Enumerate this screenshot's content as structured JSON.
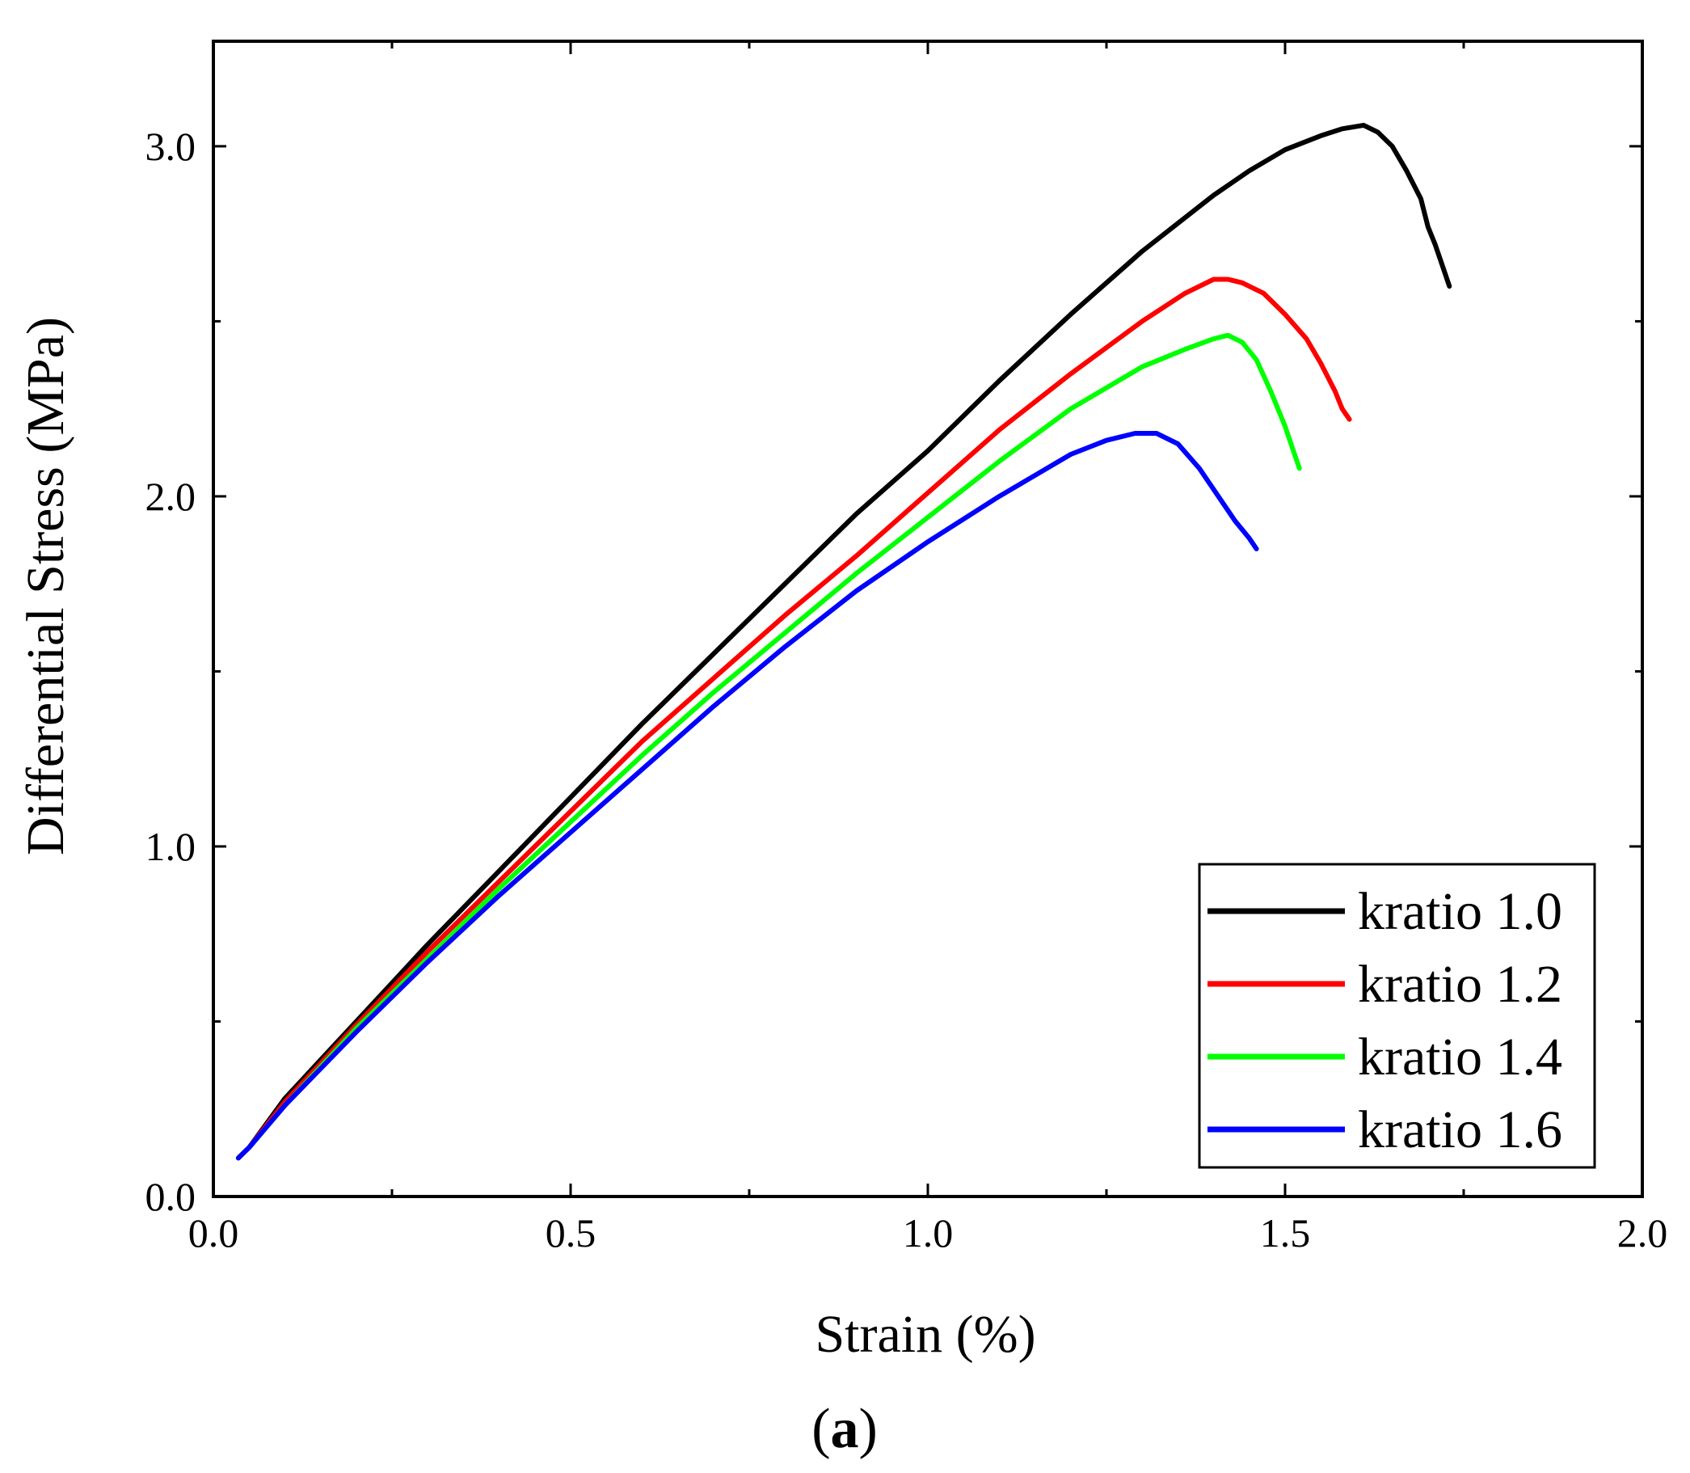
{
  "chart_data": {
    "type": "line",
    "title": "",
    "xlabel": "Strain (%)",
    "ylabel": "Differential Stress (MPa)",
    "xlim": [
      0.0,
      2.0
    ],
    "ylim": [
      0.0,
      3.3
    ],
    "xticks": [
      0.0,
      0.5,
      1.0,
      1.5,
      2.0
    ],
    "xtick_labels": [
      "0.0",
      "0.5",
      "1.0",
      "1.5",
      "2.0"
    ],
    "yticks": [
      0.0,
      1.0,
      2.0,
      3.0
    ],
    "ytick_labels": [
      "0.0",
      "1.0",
      "2.0",
      "3.0"
    ],
    "grid": false,
    "legend_position": "bottom-right",
    "series": [
      {
        "name": "kratio 1.0",
        "color": "#000000",
        "x": [
          0.035,
          0.05,
          0.1,
          0.2,
          0.3,
          0.4,
          0.5,
          0.6,
          0.7,
          0.8,
          0.9,
          1.0,
          1.1,
          1.2,
          1.3,
          1.4,
          1.45,
          1.5,
          1.55,
          1.58,
          1.61,
          1.63,
          1.65,
          1.67,
          1.69,
          1.7,
          1.71,
          1.72,
          1.73
        ],
        "y": [
          0.11,
          0.14,
          0.28,
          0.5,
          0.72,
          0.93,
          1.14,
          1.35,
          1.55,
          1.75,
          1.95,
          2.13,
          2.33,
          2.52,
          2.7,
          2.86,
          2.93,
          2.99,
          3.03,
          3.05,
          3.06,
          3.04,
          3.0,
          2.93,
          2.85,
          2.77,
          2.72,
          2.66,
          2.6
        ]
      },
      {
        "name": "kratio 1.2",
        "color": "#ff0000",
        "x": [
          0.035,
          0.05,
          0.1,
          0.2,
          0.3,
          0.4,
          0.5,
          0.6,
          0.7,
          0.8,
          0.9,
          1.0,
          1.1,
          1.2,
          1.3,
          1.36,
          1.4,
          1.42,
          1.44,
          1.47,
          1.5,
          1.53,
          1.55,
          1.57,
          1.58,
          1.59
        ],
        "y": [
          0.11,
          0.14,
          0.27,
          0.49,
          0.7,
          0.9,
          1.1,
          1.3,
          1.48,
          1.66,
          1.83,
          2.01,
          2.19,
          2.35,
          2.5,
          2.58,
          2.62,
          2.62,
          2.61,
          2.58,
          2.52,
          2.45,
          2.38,
          2.3,
          2.25,
          2.22
        ]
      },
      {
        "name": "kratio 1.4",
        "color": "#00ff00",
        "x": [
          0.035,
          0.05,
          0.1,
          0.2,
          0.3,
          0.4,
          0.5,
          0.6,
          0.7,
          0.8,
          0.9,
          1.0,
          1.1,
          1.2,
          1.3,
          1.36,
          1.4,
          1.42,
          1.44,
          1.46,
          1.48,
          1.5,
          1.51,
          1.52
        ],
        "y": [
          0.11,
          0.14,
          0.26,
          0.48,
          0.68,
          0.88,
          1.07,
          1.26,
          1.44,
          1.61,
          1.78,
          1.94,
          2.1,
          2.25,
          2.37,
          2.42,
          2.45,
          2.46,
          2.44,
          2.39,
          2.3,
          2.2,
          2.14,
          2.08
        ]
      },
      {
        "name": "kratio 1.6",
        "color": "#0000ff",
        "x": [
          0.035,
          0.05,
          0.1,
          0.2,
          0.3,
          0.4,
          0.5,
          0.6,
          0.7,
          0.8,
          0.9,
          1.0,
          1.1,
          1.2,
          1.25,
          1.29,
          1.32,
          1.35,
          1.38,
          1.41,
          1.43,
          1.45,
          1.46
        ],
        "y": [
          0.11,
          0.14,
          0.26,
          0.47,
          0.67,
          0.86,
          1.04,
          1.22,
          1.4,
          1.57,
          1.73,
          1.87,
          2.0,
          2.12,
          2.16,
          2.18,
          2.18,
          2.15,
          2.08,
          1.99,
          1.93,
          1.88,
          1.85
        ]
      }
    ]
  },
  "caption": {
    "open": "(",
    "letter": "a",
    "close": ")"
  }
}
